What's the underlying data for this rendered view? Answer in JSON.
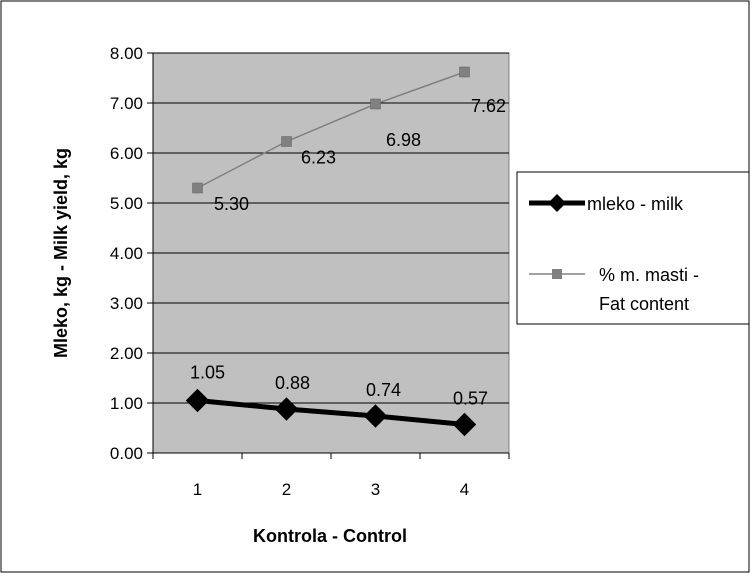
{
  "chart_data": {
    "type": "line",
    "title": "",
    "xlabel": "Kontrola - Control",
    "ylabel": "Mleko, kg - Milk yield, kg",
    "categories": [
      "1",
      "2",
      "3",
      "4"
    ],
    "ylim": [
      0,
      8
    ],
    "yticks": [
      "0.00",
      "1.00",
      "2.00",
      "3.00",
      "4.00",
      "5.00",
      "6.00",
      "7.00",
      "8.00"
    ],
    "grid": true,
    "legend_position": "right",
    "plot_background": "#c0c0c0",
    "series": [
      {
        "name": "mleko - milk",
        "values": [
          1.05,
          0.88,
          0.74,
          0.57
        ],
        "labels": [
          "1.05",
          "0.88",
          "0.74",
          "0.57"
        ],
        "color": "#000000",
        "marker": "diamond"
      },
      {
        "name": "% m. masti - Fat content",
        "legend_lines": [
          "% m. masti -",
          "Fat content"
        ],
        "values": [
          5.3,
          6.23,
          6.98,
          7.62
        ],
        "labels": [
          "5.30",
          "6.23",
          "6.98",
          "7.62"
        ],
        "color": "#808080",
        "marker": "square"
      }
    ]
  }
}
